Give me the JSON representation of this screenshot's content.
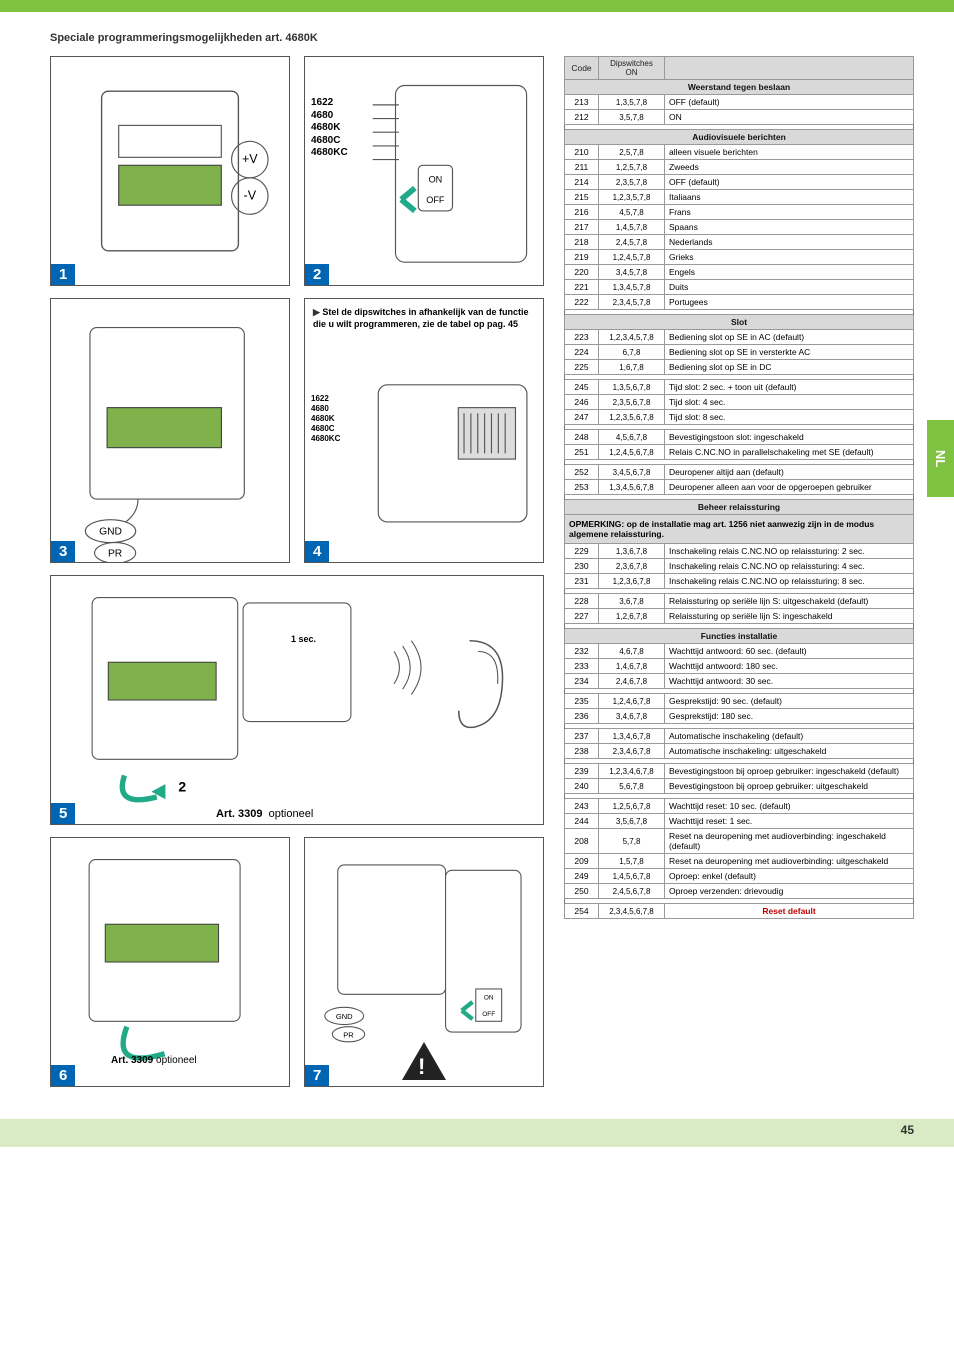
{
  "page_number": "45",
  "language_tab": "NL",
  "section_title": "Speciale programmeringsmogelijkheden art. 4680K",
  "models_list": [
    "1622",
    "4680",
    "4680K",
    "4680C",
    "4680KC"
  ],
  "art_small": "Art. 3309",
  "optioneel": "optioneel",
  "one_sec": "1 sec.",
  "voltage_plus": "+V",
  "voltage_minus": "-V",
  "gnd": "GND",
  "pr": "PR",
  "switch_on": "ON",
  "switch_off": "OFF",
  "tip_text_1": "Stel de dipswitches in afhankelijk van de functie die u wilt programmeren, zie de tabel op pag. 45",
  "header_cols": {
    "code": "Code",
    "dip": "Dipswitches\nON"
  },
  "tables": [
    {
      "section": "Weerstand tegen beslaan",
      "rows": [
        {
          "code": "213",
          "dip": "1,3,5,7,8",
          "desc": "OFF (default)"
        },
        {
          "code": "212",
          "dip": "3,5,7,8",
          "desc": "ON"
        }
      ]
    },
    {
      "section": "Audiovisuele berichten",
      "rows": [
        {
          "code": "210",
          "dip": "2,5,7,8",
          "desc": "alleen visuele berichten"
        },
        {
          "code": "211",
          "dip": "1,2,5,7,8",
          "desc": "Zweeds"
        },
        {
          "code": "214",
          "dip": "2,3,5,7,8",
          "desc": "OFF (default)"
        },
        {
          "code": "215",
          "dip": "1,2,3,5,7,8",
          "desc": "Italiaans"
        },
        {
          "code": "216",
          "dip": "4,5,7,8",
          "desc": "Frans"
        },
        {
          "code": "217",
          "dip": "1,4,5,7,8",
          "desc": "Spaans"
        },
        {
          "code": "218",
          "dip": "2,4,5,7,8",
          "desc": "Nederlands"
        },
        {
          "code": "219",
          "dip": "1,2,4,5,7,8",
          "desc": "Grieks"
        },
        {
          "code": "220",
          "dip": "3,4,5,7,8",
          "desc": "Engels"
        },
        {
          "code": "221",
          "dip": "1,3,4,5,7,8",
          "desc": "Duits"
        },
        {
          "code": "222",
          "dip": "2,3,4,5,7,8",
          "desc": "Portugees"
        }
      ]
    },
    {
      "section": "Slot",
      "subgroups": [
        [
          {
            "code": "223",
            "dip": "1,2,3,4,5,7,8",
            "desc": "Bediening slot op SE in AC (default)"
          },
          {
            "code": "224",
            "dip": "6,7,8",
            "desc": "Bediening slot op SE in versterkte AC"
          },
          {
            "code": "225",
            "dip": "1,6,7,8",
            "desc": "Bediening slot op SE in DC"
          }
        ],
        [
          {
            "code": "245",
            "dip": "1,3,5,6,7,8",
            "desc": "Tijd slot: 2 sec. + toon uit (default)"
          },
          {
            "code": "246",
            "dip": "2,3,5,6,7,8",
            "desc": "Tijd slot: 4 sec."
          },
          {
            "code": "247",
            "dip": "1,2,3,5,6,7,8",
            "desc": "Tijd slot: 8 sec."
          }
        ],
        [
          {
            "code": "248",
            "dip": "4,5,6,7,8",
            "desc": "Bevestigingstoon slot: ingeschakeld"
          },
          {
            "code": "251",
            "dip": "1,2,4,5,6,7,8",
            "desc": "Relais C.NC.NO in parallelschakeling met SE (default)"
          }
        ],
        [
          {
            "code": "252",
            "dip": "3,4,5,6,7,8",
            "desc": "Deuropener altijd aan (default)"
          },
          {
            "code": "253",
            "dip": "1,3,4,5,6,7,8",
            "desc": "Deuropener alleen aan voor de opgeroepen gebruiker"
          }
        ]
      ]
    },
    {
      "section": "Beheer relaissturing",
      "note": "OPMERKING: op de installatie mag art. 1256 niet aanwezig zijn in de modus algemene relaissturing.",
      "subgroups": [
        [
          {
            "code": "229",
            "dip": "1,3,6,7,8",
            "desc": "Inschakeling relais C.NC.NO op relaissturing: 2 sec."
          },
          {
            "code": "230",
            "dip": "2,3,6,7,8",
            "desc": "Inschakeling relais C.NC.NO op relaissturing: 4 sec."
          },
          {
            "code": "231",
            "dip": "1,2,3,6,7,8",
            "desc": "Inschakeling relais C.NC.NO op relaissturing: 8 sec."
          }
        ],
        [
          {
            "code": "228",
            "dip": "3,6,7,8",
            "desc": "Relaissturing op seriële lijn S: uitgeschakeld (default)"
          },
          {
            "code": "227",
            "dip": "1,2,6,7,8",
            "desc": "Relaissturing op seriële lijn S: ingeschakeld"
          }
        ]
      ]
    },
    {
      "section": "Functies installatie",
      "subgroups": [
        [
          {
            "code": "232",
            "dip": "4,6,7,8",
            "desc": "Wachttijd antwoord: 60 sec. (default)"
          },
          {
            "code": "233",
            "dip": "1,4,6,7,8",
            "desc": "Wachttijd antwoord: 180 sec."
          },
          {
            "code": "234",
            "dip": "2,4,6,7,8",
            "desc": "Wachttijd antwoord: 30 sec."
          }
        ],
        [
          {
            "code": "235",
            "dip": "1,2,4,6,7,8",
            "desc": "Gesprekstijd: 90 sec. (default)"
          },
          {
            "code": "236",
            "dip": "3,4,6,7,8",
            "desc": "Gesprekstijd: 180 sec."
          }
        ],
        [
          {
            "code": "237",
            "dip": "1,3,4,6,7,8",
            "desc": "Automatische inschakeling (default)"
          },
          {
            "code": "238",
            "dip": "2,3,4,6,7,8",
            "desc": "Automatische inschakeling: uitgeschakeld"
          }
        ],
        [
          {
            "code": "239",
            "dip": "1,2,3,4,6,7,8",
            "desc": "Bevestigingstoon bij oproep gebruiker: ingeschakeld (default)"
          },
          {
            "code": "240",
            "dip": "5,6,7,8",
            "desc": "Bevestigingstoon bij oproep gebruiker: uitgeschakeld"
          }
        ],
        [
          {
            "code": "243",
            "dip": "1,2,5,6,7,8",
            "desc": "Wachttijd reset: 10 sec. (default)"
          },
          {
            "code": "244",
            "dip": "3,5,6,7,8",
            "desc": "Wachttijd reset: 1 sec."
          },
          {
            "code": "208",
            "dip": "5,7,8",
            "desc": "Reset na deuropening met audioverbinding: ingeschakeld (default)"
          },
          {
            "code": "209",
            "dip": "1,5,7,8",
            "desc": "Reset na deuropening met audioverbinding: uitgeschakeld"
          },
          {
            "code": "249",
            "dip": "1,4,5,6,7,8",
            "desc": "Oproep: enkel (default)"
          },
          {
            "code": "250",
            "dip": "2,4,5,6,7,8",
            "desc": "Oproep verzenden: drievoudig"
          }
        ]
      ]
    }
  ],
  "reset_row": {
    "code": "254",
    "dip": "2,3,4,5,6,7,8",
    "desc": "Reset default"
  }
}
